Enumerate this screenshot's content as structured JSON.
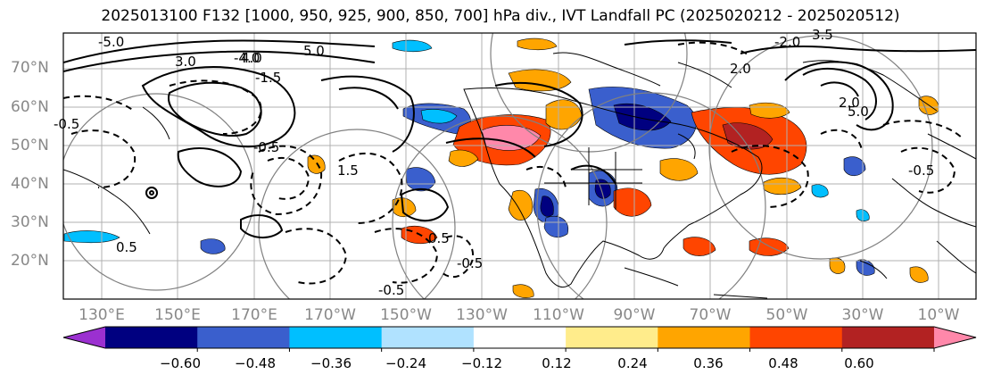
{
  "title": "2025013100 F132 [1000, 950, 925, 900, 850, 700] hPa div., IVT Landfall PC (2025020212 - 2025020512)",
  "lat_labels": [
    "70°N",
    "60°N",
    "50°N",
    "40°N",
    "30°N",
    "20°N"
  ],
  "lon_labels": [
    "130°E",
    "150°E",
    "170°E",
    "170°W",
    "150°W",
    "130°W",
    "110°W",
    "90°W",
    "70°W",
    "50°W",
    "30°W",
    "10°W"
  ],
  "contour_labels": [
    "-5.0",
    "-4.0",
    "-2.0",
    "-1.5",
    "-0.5",
    "-0.5",
    "-0.5",
    "-0.5",
    "-0.5",
    "0.5",
    "0.5",
    "1.5",
    "2.0",
    "2.0",
    "3.0",
    "3.5",
    "4.0",
    "5.0",
    "5.0"
  ],
  "colorbar": {
    "ticks": [
      "−0.60",
      "−0.48",
      "−0.36",
      "−0.24",
      "−0.12",
      "0.12",
      "0.24",
      "0.36",
      "0.48",
      "0.60"
    ],
    "colors": [
      "#9b30d0",
      "#000080",
      "#3a5fcd",
      "#00bfff",
      "#b0e2ff",
      "#ffffff",
      "#ffec8b",
      "#ffa500",
      "#ff4500",
      "#b22222",
      "#ff88aa"
    ]
  }
}
